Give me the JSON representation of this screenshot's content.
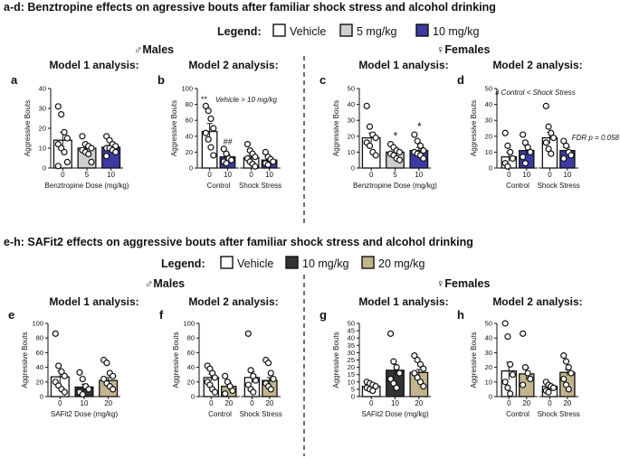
{
  "top_section": {
    "heading": "a-d: Benztropine effects on agressive bouts after familiar shock stress and alcohol drinking",
    "legend_label": "Legend:",
    "legend_items": [
      {
        "label": "Vehicle",
        "color": "#ffffff"
      },
      {
        "label": "5 mg/kg",
        "color": "#cfcfcf"
      },
      {
        "label": "10 mg/kg",
        "color": "#3d3aa3"
      }
    ],
    "males_label": "♂Males",
    "females_label": "♀Females"
  },
  "bottom_section": {
    "heading": "e-h: SAFit2 effects on aggressive bouts after familiar shock stress and alcohol drinking",
    "legend_label": "Legend:",
    "legend_items": [
      {
        "label": "Vehicle",
        "color": "#ffffff"
      },
      {
        "label": "10 mg/kg",
        "color": "#333333"
      },
      {
        "label": "20 mg/kg",
        "color": "#c2b58e"
      }
    ],
    "males_label": "♂Males",
    "females_label": "♀Females"
  },
  "chart_data": [
    {
      "type": "bar",
      "panel": "a",
      "model_label": "Model 1 analysis:",
      "ylabel": "Aggressive Bouts",
      "xlabel": "Benztropine Dose (mg/kg)",
      "ylim": [
        0,
        40
      ],
      "yticks": [
        0,
        10,
        20,
        30,
        40
      ],
      "categories": [
        "0",
        "5",
        "10"
      ],
      "groups": [],
      "values": [
        14,
        10,
        10.5
      ],
      "errors": [
        4,
        1.5,
        1.2
      ],
      "colors": [
        "#ffffff",
        "#cfcfcf",
        "#3d3aa3"
      ],
      "points": [
        [
          31,
          27,
          18,
          15,
          12,
          10,
          8,
          3,
          1
        ],
        [
          16,
          12,
          11,
          10,
          9,
          8,
          7,
          3
        ],
        [
          16,
          14,
          12,
          11,
          10,
          10,
          9,
          8,
          6
        ]
      ],
      "annotations": [],
      "markers": []
    },
    {
      "type": "bar",
      "panel": "b",
      "model_label": "Model 2 analysis:",
      "ylabel": "Aggressive Bouts",
      "xlabel": "",
      "ylim": [
        0,
        100
      ],
      "yticks": [
        0,
        20,
        40,
        60,
        80,
        100
      ],
      "categories": [
        "0",
        "10",
        "0",
        "10"
      ],
      "groups": [
        "Control",
        "Shock Stress"
      ],
      "values": [
        46,
        14,
        13,
        10
      ],
      "errors": [
        10,
        3,
        3,
        2
      ],
      "colors": [
        "#ffffff",
        "#3d3aa3",
        "#ffffff",
        "#3d3aa3"
      ],
      "points": [
        [
          78,
          72,
          62,
          50,
          44,
          36,
          26,
          16
        ],
        [
          24,
          18,
          12,
          10,
          8,
          6
        ],
        [
          30,
          22,
          18,
          14,
          12,
          8,
          5,
          2
        ],
        [
          20,
          14,
          11,
          8,
          6,
          4
        ]
      ],
      "annotations": [
        "**",
        "Vehicle > 10 mg/kg"
      ],
      "markers": [
        {
          "bar": 1,
          "text": "##"
        }
      ]
    },
    {
      "type": "bar",
      "panel": "c",
      "model_label": "Model 1 analysis:",
      "ylabel": "Aggressive Bouts",
      "xlabel": "Benztropine Dose (mg/kg)",
      "ylim": [
        0,
        50
      ],
      "yticks": [
        0,
        10,
        20,
        30,
        40,
        50
      ],
      "categories": [
        "0",
        "5",
        "10"
      ],
      "groups": [],
      "values": [
        19,
        10,
        11
      ],
      "errors": [
        3,
        1.5,
        2
      ],
      "colors": [
        "#ffffff",
        "#cfcfcf",
        "#3d3aa3"
      ],
      "points": [
        [
          39,
          26,
          21,
          19,
          16,
          14,
          10,
          8
        ],
        [
          15,
          13,
          11,
          10,
          9,
          8,
          6,
          5
        ],
        [
          21,
          17,
          14,
          11,
          10,
          9,
          8,
          6
        ]
      ],
      "annotations": [],
      "markers": [
        {
          "bar": 1,
          "text": "*"
        },
        {
          "bar": 2,
          "text": "*"
        }
      ]
    },
    {
      "type": "bar",
      "panel": "d",
      "model_label": "Model 2 analysis:",
      "ylabel": "Aggressive Bouts",
      "xlabel": "",
      "ylim": [
        0,
        50
      ],
      "yticks": [
        0,
        10,
        20,
        30,
        40,
        50
      ],
      "categories": [
        "0",
        "10",
        "0",
        "10"
      ],
      "groups": [
        "Control",
        "Shock Stress"
      ],
      "values": [
        7,
        11,
        19,
        11
      ],
      "errors": [
        3,
        3,
        3.5,
        2
      ],
      "colors": [
        "#ffffff",
        "#3d3aa3",
        "#ffffff",
        "#3d3aa3"
      ],
      "points": [
        [
          22,
          14,
          10,
          6,
          3,
          1
        ],
        [
          21,
          16,
          13,
          10,
          7,
          3
        ],
        [
          39,
          26,
          22,
          19,
          16,
          12,
          9
        ],
        [
          17,
          14,
          10,
          8,
          6
        ]
      ],
      "annotations": [
        "# Control < Shock Stress",
        "FDR p = 0.058"
      ],
      "markers": []
    },
    {
      "type": "bar",
      "panel": "e",
      "model_label": "Model 1 analysis:",
      "ylabel": "Aggressive Bouts",
      "xlabel": "SAFit2 Dose (mg/kg)",
      "ylim": [
        0,
        100
      ],
      "yticks": [
        0,
        20,
        40,
        60,
        80,
        100
      ],
      "categories": [
        "0",
        "10",
        "20"
      ],
      "groups": [],
      "values": [
        27,
        13,
        22
      ],
      "errors": [
        8,
        4,
        4
      ],
      "colors": [
        "#ffffff",
        "#333333",
        "#c2b58e"
      ],
      "points": [
        [
          86,
          42,
          34,
          28,
          20,
          15,
          10,
          6
        ],
        [
          33,
          24,
          14,
          10,
          6,
          3
        ],
        [
          50,
          46,
          32,
          28,
          24,
          18,
          14,
          10
        ]
      ],
      "annotations": [],
      "markers": []
    },
    {
      "type": "bar",
      "panel": "f",
      "model_label": "Model 2 analysis:",
      "ylabel": "Aggressive Bouts",
      "xlabel": "",
      "ylim": [
        0,
        100
      ],
      "yticks": [
        0,
        20,
        40,
        60,
        80,
        100
      ],
      "categories": [
        "0",
        "20",
        "0",
        "20"
      ],
      "groups": [
        "Control",
        "Shock Stress"
      ],
      "values": [
        26,
        14,
        26,
        22
      ],
      "errors": [
        5,
        5,
        8,
        4
      ],
      "colors": [
        "#ffffff",
        "#c2b58e",
        "#ffffff",
        "#c2b58e"
      ],
      "points": [
        [
          42,
          38,
          32,
          26,
          20,
          16,
          10,
          6
        ],
        [
          28,
          20,
          14,
          8,
          4
        ],
        [
          86,
          36,
          28,
          22,
          16,
          10,
          6
        ],
        [
          50,
          46,
          32,
          24,
          18,
          14,
          10
        ]
      ],
      "annotations": [],
      "markers": []
    },
    {
      "type": "bar",
      "panel": "g",
      "model_label": "Model 1 analysis:",
      "ylabel": "Aggressive Bouts",
      "xlabel": "SAFit2 Dose (mg/kg)",
      "ylim": [
        0,
        50
      ],
      "yticks": [
        0,
        5,
        10,
        15,
        20,
        25,
        30,
        35,
        40,
        45,
        50
      ],
      "categories": [
        "0",
        "10",
        "20"
      ],
      "groups": [],
      "values": [
        7,
        18,
        16.5
      ],
      "errors": [
        1.2,
        4,
        2
      ],
      "colors": [
        "#ffffff",
        "#333333",
        "#c2b58e"
      ],
      "points": [
        [
          10,
          9,
          8,
          7,
          6,
          5,
          4
        ],
        [
          43,
          24,
          20,
          16,
          12,
          9,
          6
        ],
        [
          28,
          25,
          22,
          19,
          16,
          13,
          10,
          7
        ]
      ],
      "annotations": [],
      "markers": []
    },
    {
      "type": "bar",
      "panel": "h",
      "model_label": "Model 2 analysis:",
      "ylabel": "Aggressive Bouts",
      "xlabel": "",
      "ylim": [
        0,
        50
      ],
      "yticks": [
        0,
        10,
        20,
        30,
        40,
        50
      ],
      "categories": [
        "0",
        "20",
        "0",
        "20"
      ],
      "groups": [
        "Control",
        "Shock Stress"
      ],
      "values": [
        17.5,
        15.5,
        7,
        16.5
      ],
      "errors": [
        6,
        4,
        1.5,
        2
      ],
      "colors": [
        "#ffffff",
        "#c2b58e",
        "#ffffff",
        "#c2b58e"
      ],
      "points": [
        [
          50,
          41,
          22,
          15,
          10,
          6,
          2
        ],
        [
          43,
          20,
          16,
          12,
          8
        ],
        [
          10,
          8,
          7,
          6,
          4,
          3
        ],
        [
          28,
          24,
          20,
          16,
          12,
          8,
          5
        ]
      ],
      "annotations": [],
      "markers": []
    }
  ]
}
